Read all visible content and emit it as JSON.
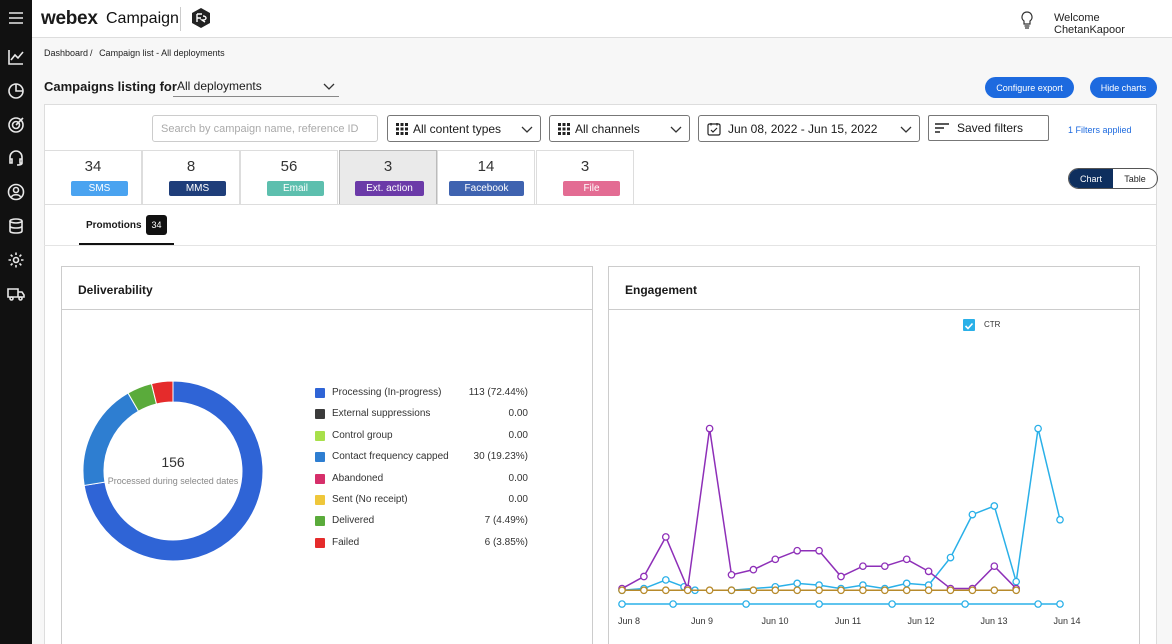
{
  "topbar": {
    "brand": "webex",
    "product": "Campaign",
    "welcome": "Welcome ChetanKapoor"
  },
  "breadcrumb": {
    "root": "Dashboard",
    "separator": "/",
    "current": "Campaign list - All deployments"
  },
  "listing": {
    "label": "Campaigns listing for",
    "deployment": "All deployments"
  },
  "actions": {
    "configure_export": "Configure export",
    "hide_charts": "Hide charts"
  },
  "filters": {
    "search_placeholder": "Search by campaign name, reference ID",
    "content_types": "All content types",
    "channels": "All channels",
    "date_range": "Jun 08, 2022 - Jun 15, 2022",
    "saved_filters": "Saved filters",
    "applied": "1 Filters applied"
  },
  "channel_tabs": [
    {
      "count": "34",
      "label": "SMS",
      "color": "#4aa3f0"
    },
    {
      "count": "8",
      "label": "MMS",
      "color": "#1f3e7a"
    },
    {
      "count": "56",
      "label": "Email",
      "color": "#5dbfae"
    },
    {
      "count": "3",
      "label": "Ext. action",
      "color": "#6b3aa8"
    },
    {
      "count": "14",
      "label": "Facebook",
      "color": "#3f63b0"
    },
    {
      "count": "3",
      "label": "File",
      "color": "#e36c93"
    }
  ],
  "view_toggle": {
    "chart": "Chart",
    "table": "Table"
  },
  "subtab": {
    "label": "Promotions",
    "count": "34"
  },
  "deliverability": {
    "title": "Deliverability",
    "total": "156",
    "total_label": "Processed during selected dates",
    "legend": [
      {
        "label": "Processing (In-progress)",
        "value": "113 (72.44%)",
        "color": "#2f64d6"
      },
      {
        "label": "External suppressions",
        "value": "0.00",
        "color": "#3b3b3b"
      },
      {
        "label": "Control group",
        "value": "0.00",
        "color": "#a8e04a"
      },
      {
        "label": "Contact frequency capped",
        "value": "30 (19.23%)",
        "color": "#2e7ed1"
      },
      {
        "label": "Abandoned",
        "value": "0.00",
        "color": "#d62f6a"
      },
      {
        "label": "Sent (No receipt)",
        "value": "0.00",
        "color": "#efc73a"
      },
      {
        "label": "Delivered",
        "value": "7 (4.49%)",
        "color": "#5aab3b"
      },
      {
        "label": "Failed",
        "value": "6 (3.85%)",
        "color": "#e52b2b"
      }
    ]
  },
  "engagement": {
    "title": "Engagement",
    "legend_ctr": "CTR",
    "x_labels": [
      "Jun 8",
      "Jun 9",
      "Jun 10",
      "Jun 11",
      "Jun 12",
      "Jun 13",
      "Jun 14"
    ]
  },
  "chart_data": [
    {
      "type": "pie",
      "title": "Deliverability",
      "categories": [
        "Processing (In-progress)",
        "External suppressions",
        "Control group",
        "Contact frequency capped",
        "Abandoned",
        "Sent (No receipt)",
        "Delivered",
        "Failed"
      ],
      "values": [
        113,
        0,
        0,
        30,
        0,
        0,
        7,
        6
      ],
      "colors": [
        "#2f64d6",
        "#3b3b3b",
        "#a8e04a",
        "#2e7ed1",
        "#d62f6a",
        "#efc73a",
        "#5aab3b",
        "#e52b2b"
      ],
      "total": 156
    },
    {
      "type": "line",
      "title": "Engagement",
      "x": [
        "Jun 8",
        "Jun 9",
        "Jun 10",
        "Jun 11",
        "Jun 12",
        "Jun 13",
        "Jun 14"
      ],
      "ylim": [
        0,
        100
      ],
      "series": [
        {
          "name": "CTR",
          "color": "#2ab0e8",
          "points": [
            [
              0,
              1
            ],
            [
              0.3,
              2
            ],
            [
              0.6,
              7
            ],
            [
              0.85,
              3
            ],
            [
              1.0,
              1
            ],
            [
              1.5,
              1
            ],
            [
              2.1,
              3
            ],
            [
              2.4,
              5
            ],
            [
              2.7,
              4
            ],
            [
              3.0,
              2
            ],
            [
              3.3,
              4
            ],
            [
              3.6,
              2
            ],
            [
              3.9,
              5
            ],
            [
              4.2,
              4
            ],
            [
              4.5,
              20
            ],
            [
              4.8,
              45
            ],
            [
              5.1,
              50
            ],
            [
              5.4,
              6
            ],
            [
              5.7,
              95
            ],
            [
              6.0,
              42
            ]
          ]
        },
        {
          "name": "",
          "color": "#8e2fb8",
          "points": [
            [
              0,
              2
            ],
            [
              0.3,
              9
            ],
            [
              0.6,
              32
            ],
            [
              0.9,
              2
            ],
            [
              1.2,
              95
            ],
            [
              1.5,
              10
            ],
            [
              1.8,
              13
            ],
            [
              2.1,
              19
            ],
            [
              2.4,
              24
            ],
            [
              2.7,
              24
            ],
            [
              3.0,
              9
            ],
            [
              3.3,
              15
            ],
            [
              3.6,
              15
            ],
            [
              3.9,
              19
            ],
            [
              4.2,
              12
            ],
            [
              4.5,
              2
            ],
            [
              4.8,
              2
            ],
            [
              5.1,
              15
            ],
            [
              5.4,
              2
            ]
          ]
        },
        {
          "name": "",
          "color": "#b78a2b",
          "points": [
            [
              0,
              1
            ],
            [
              0.3,
              1
            ],
            [
              0.6,
              1
            ],
            [
              0.9,
              1
            ],
            [
              1.2,
              1
            ],
            [
              1.5,
              1
            ],
            [
              1.8,
              1
            ],
            [
              2.1,
              1
            ],
            [
              2.4,
              1
            ],
            [
              2.7,
              1
            ],
            [
              3.0,
              1
            ],
            [
              3.3,
              1
            ],
            [
              3.6,
              1
            ],
            [
              3.9,
              1
            ],
            [
              4.2,
              1
            ],
            [
              4.5,
              1
            ],
            [
              4.8,
              1
            ],
            [
              5.1,
              1
            ],
            [
              5.4,
              1
            ]
          ]
        },
        {
          "name": "",
          "color": "#2ab0e8",
          "points": [
            [
              0,
              -7
            ],
            [
              0.7,
              -7
            ],
            [
              1.7,
              -7
            ],
            [
              2.7,
              -7
            ],
            [
              3.7,
              -7
            ],
            [
              4.7,
              -7
            ],
            [
              5.7,
              -7
            ],
            [
              6.0,
              -7
            ]
          ]
        }
      ]
    }
  ]
}
